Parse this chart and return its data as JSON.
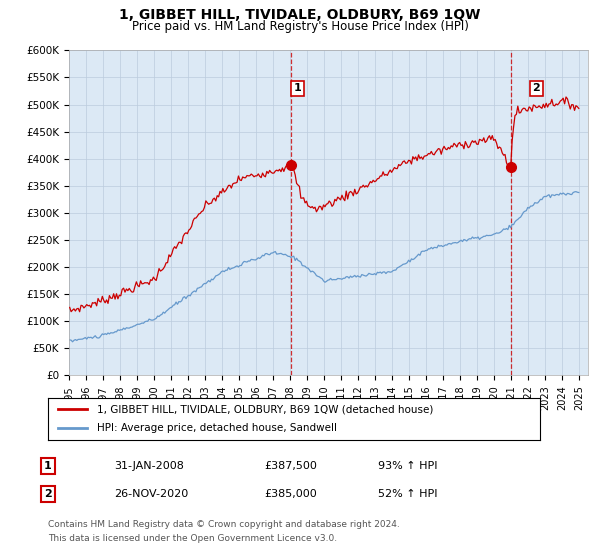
{
  "title": "1, GIBBET HILL, TIVIDALE, OLDBURY, B69 1QW",
  "subtitle": "Price paid vs. HM Land Registry's House Price Index (HPI)",
  "ylabel_ticks": [
    "£0",
    "£50K",
    "£100K",
    "£150K",
    "£200K",
    "£250K",
    "£300K",
    "£350K",
    "£400K",
    "£450K",
    "£500K",
    "£550K",
    "£600K"
  ],
  "ylim": [
    0,
    600000
  ],
  "yticks": [
    0,
    50000,
    100000,
    150000,
    200000,
    250000,
    300000,
    350000,
    400000,
    450000,
    500000,
    550000,
    600000
  ],
  "xlim_start": 1995.0,
  "xlim_end": 2025.5,
  "red_color": "#cc0000",
  "blue_color": "#6699cc",
  "plot_bg_color": "#dce9f5",
  "point1_x_year": 2008.08,
  "point1_y": 387500,
  "point2_x_year": 2020.92,
  "point2_y": 385000,
  "legend_line1": "1, GIBBET HILL, TIVIDALE, OLDBURY, B69 1QW (detached house)",
  "legend_line2": "HPI: Average price, detached house, Sandwell",
  "annotation1_num": "1",
  "annotation1_date": "31-JAN-2008",
  "annotation1_price": "£387,500",
  "annotation1_hpi": "93% ↑ HPI",
  "annotation2_num": "2",
  "annotation2_date": "26-NOV-2020",
  "annotation2_price": "£385,000",
  "annotation2_hpi": "52% ↑ HPI",
  "footer1": "Contains HM Land Registry data © Crown copyright and database right 2024.",
  "footer2": "This data is licensed under the Open Government Licence v3.0.",
  "background_color": "#ffffff",
  "grid_color": "#bbccdd"
}
